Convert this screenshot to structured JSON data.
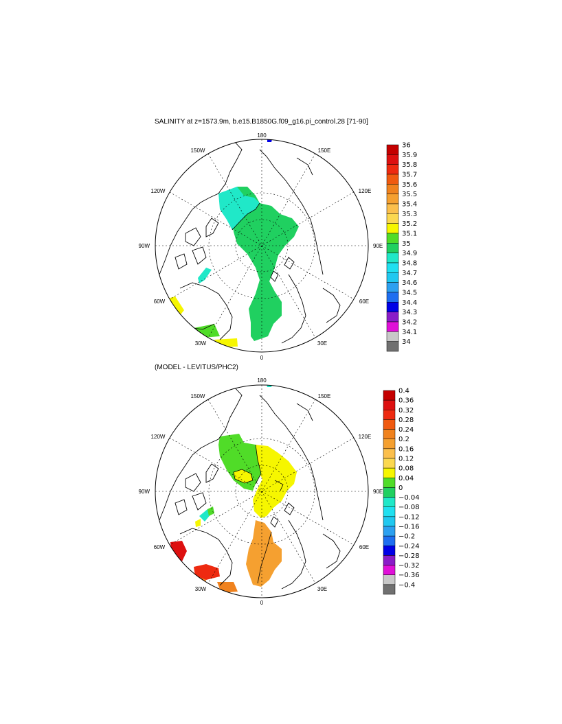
{
  "panels": [
    {
      "title": "SALINITY at z=1573.9m, b.e15.B1850G.f09_g16.pi_control.28 [71-90]",
      "lon_labels": {
        "top": "180",
        "bottom": "0",
        "left": "90W",
        "right": "90E",
        "ul1": "150W",
        "ul2": "120W",
        "ur1": "150E",
        "ur2": "120E",
        "ll1": "60W",
        "ll2": "30W",
        "lr1": "60E",
        "lr2": "30E"
      },
      "colorbar": {
        "labels": [
          "36",
          "35.9",
          "35.8",
          "35.7",
          "35.6",
          "35.5",
          "35.4",
          "35.3",
          "35.2",
          "35.1",
          "35",
          "34.9",
          "34.8",
          "34.7",
          "34.6",
          "34.5",
          "34.4",
          "34.3",
          "34.2",
          "34.1",
          "34"
        ],
        "colors": [
          "#c40000",
          "#dd1010",
          "#ee2a10",
          "#f05a10",
          "#f0821e",
          "#f5a030",
          "#fbbf4c",
          "#fbd850",
          "#f6f600",
          "#50dc28",
          "#20d060",
          "#20e8c8",
          "#20e0f0",
          "#20c8f0",
          "#2ca0f0",
          "#1e6ef0",
          "#0000e6",
          "#8a1cc8",
          "#e010d8",
          "#c8c8c8",
          "#707070"
        ]
      }
    },
    {
      "title": "(MODEL - LEVITUS/PHC2)",
      "lon_labels": {
        "top": "180",
        "bottom": "0",
        "left": "90W",
        "right": "90E",
        "ul1": "150W",
        "ul2": "120W",
        "ur1": "150E",
        "ur2": "120E",
        "ll1": "60W",
        "ll2": "30W",
        "lr1": "60E",
        "lr2": "30E"
      },
      "colorbar": {
        "labels": [
          "0.4",
          "0.36",
          "0.32",
          "0.28",
          "0.24",
          "0.2",
          "0.16",
          "0.12",
          "0.08",
          "0.04",
          "0",
          "−0.04",
          "−0.08",
          "−0.12",
          "−0.16",
          "−0.2",
          "−0.24",
          "−0.28",
          "−0.32",
          "−0.36",
          "−0.4"
        ],
        "colors": [
          "#c40000",
          "#dd1010",
          "#ee2a10",
          "#f05a10",
          "#f0821e",
          "#f5a030",
          "#fbbf4c",
          "#fbd850",
          "#f6f600",
          "#50dc28",
          "#20d060",
          "#20e8c8",
          "#20e0f0",
          "#20c8f0",
          "#2ca0f0",
          "#1e6ef0",
          "#0000e6",
          "#8a1cc8",
          "#e010d8",
          "#c8c8c8",
          "#707070"
        ]
      }
    }
  ]
}
